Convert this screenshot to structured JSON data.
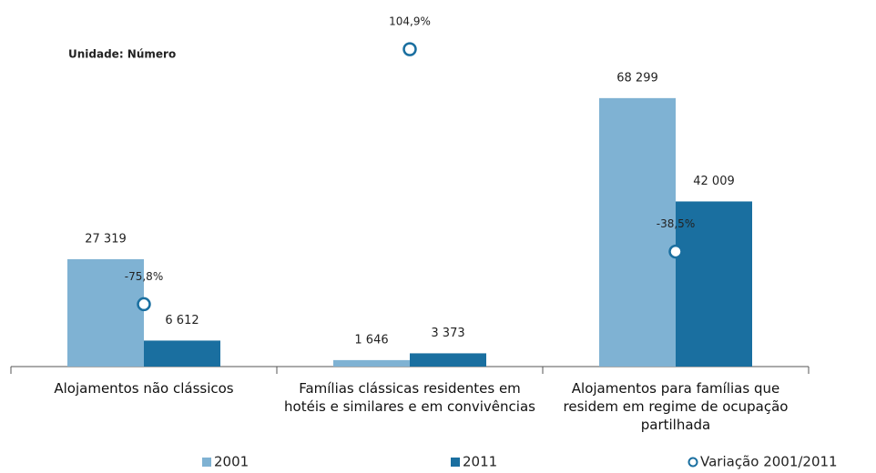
{
  "chart_data": {
    "type": "bar",
    "annotation": "Unidade: Número",
    "categories": [
      "Alojamentos não clássicos",
      "Famílias clássicas residentes em hotéis e similares e em convivências",
      "Alojamentos para famílias que residem em regime de ocupação partilhada"
    ],
    "series": [
      {
        "name": "2001",
        "color": "#7fb2d3",
        "values": [
          27319,
          1646,
          68299
        ],
        "value_labels": [
          "27 319",
          "1 646",
          "68 299"
        ]
      },
      {
        "name": "2011",
        "color": "#1a6fa0",
        "values": [
          6612,
          3373,
          42009
        ],
        "value_labels": [
          "6 612",
          "3 373",
          "42 009"
        ]
      },
      {
        "name": "Variação 2001/2011",
        "type": "scatter",
        "axis": "y2",
        "color": "#1a6fa0",
        "values": [
          -75.8,
          104.9,
          -38.5
        ],
        "value_labels": [
          "-75,8%",
          "104,9%",
          "-38,5%"
        ]
      }
    ],
    "ylim": [
      0,
      84000
    ],
    "y2lim": [
      -120,
      114
    ]
  }
}
